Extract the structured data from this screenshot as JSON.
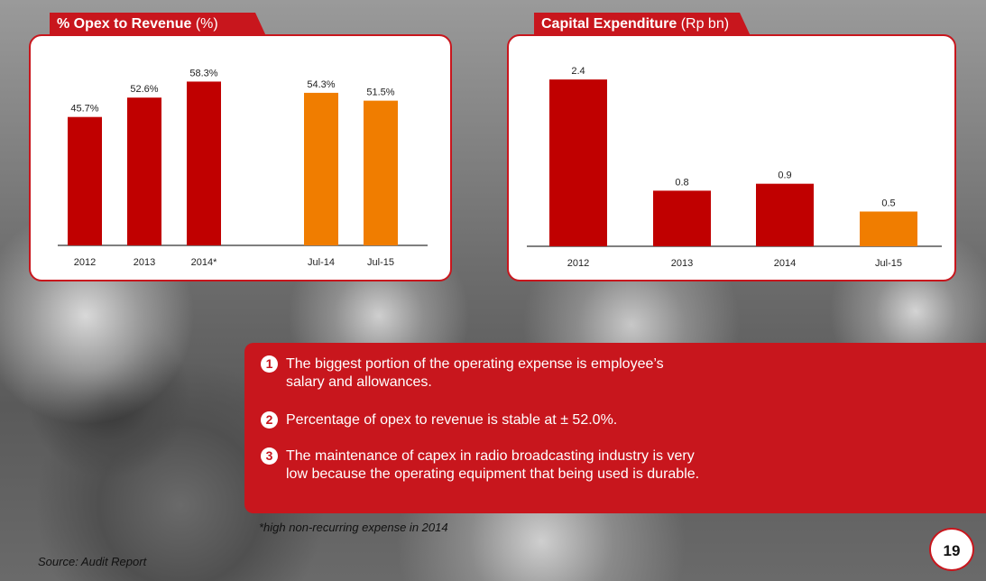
{
  "colors": {
    "accent": "#c8161d",
    "bar_dark_red": "#c00000",
    "bar_orange": "#f07d00"
  },
  "chart_data": [
    {
      "type": "bar",
      "title_bold": "% Opex to Revenue",
      "title_unit": "(%)",
      "categories": [
        "2012",
        "2013",
        "2014*",
        "Jul-14",
        "Jul-15"
      ],
      "values": [
        45.7,
        52.6,
        58.3,
        54.3,
        51.5
      ],
      "labels": [
        "45.7%",
        "52.6%",
        "58.3%",
        "54.3%",
        "51.5%"
      ],
      "bar_colors": [
        "#c00000",
        "#c00000",
        "#c00000",
        "#f07d00",
        "#f07d00"
      ],
      "ylim": [
        0,
        70
      ]
    },
    {
      "type": "bar",
      "title_bold": "Capital Expenditure",
      "title_unit": "(Rp bn)",
      "categories": [
        "2012",
        "2013",
        "2014",
        "Jul-15"
      ],
      "values": [
        2.4,
        0.8,
        0.9,
        0.5
      ],
      "labels": [
        "2.4",
        "0.8",
        "0.9",
        "0.5"
      ],
      "bar_colors": [
        "#c00000",
        "#c00000",
        "#c00000",
        "#f07d00"
      ],
      "ylim": [
        0,
        2.7
      ]
    }
  ],
  "notes": [
    {
      "num": "1",
      "text": "The biggest portion of the operating expense is employee’s salary and allowances."
    },
    {
      "num": "2",
      "text": "Percentage of opex to revenue is stable at ± 52.0%."
    },
    {
      "num": "3",
      "text": "The maintenance of capex in radio broadcasting industry is very low because the operating equipment that being used is durable."
    }
  ],
  "footnote": "*high non-recurring expense in 2014",
  "source": "Source: Audit Report",
  "page_number": "19"
}
